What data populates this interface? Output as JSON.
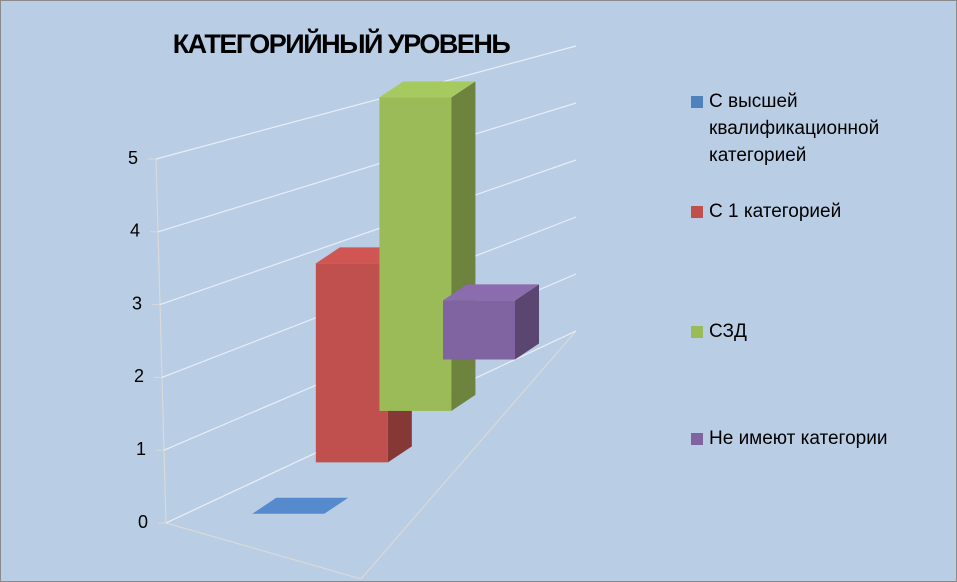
{
  "chart_data": {
    "type": "bar3d",
    "title": "КАТЕГОРИЙНЫЙ УРОВЕНЬ",
    "categories": [
      null
    ],
    "series": [
      {
        "name": "С высшей квалификационной категорией",
        "color": "#4f81bd",
        "values": [
          0
        ]
      },
      {
        "name": "С 1 категорией",
        "color": "#c0504d",
        "values": [
          3
        ]
      },
      {
        "name": "СЗД",
        "color": "#9bbb59",
        "values": [
          5
        ]
      },
      {
        "name": "Не имеют категории",
        "color": "#8064a2",
        "values": [
          1
        ]
      }
    ],
    "ylim": [
      0,
      5
    ],
    "yticks": [
      0,
      1,
      2,
      3,
      4,
      5
    ],
    "grid": true,
    "legend": "right"
  }
}
